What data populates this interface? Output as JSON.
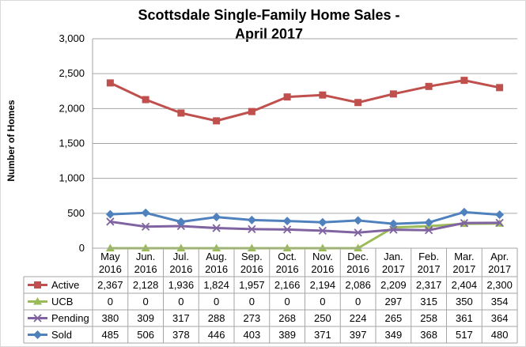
{
  "chart_data": {
    "type": "line",
    "title_lines": [
      "Scottsdale Single-Family Home Sales -",
      "April 2017"
    ],
    "ylabel": "Number of Homes",
    "ylim": [
      0,
      3000
    ],
    "yticks": [
      0,
      500,
      1000,
      1500,
      2000,
      2500,
      3000
    ],
    "ytick_labels": [
      "0",
      "500",
      "1,000",
      "1,500",
      "2,000",
      "2,500",
      "3,000"
    ],
    "grid": true,
    "legend_placement": "data-table",
    "categories": [
      [
        "May",
        "2016"
      ],
      [
        "Jun.",
        "2016"
      ],
      [
        "Jul.",
        "2016"
      ],
      [
        "Aug.",
        "2016"
      ],
      [
        "Sep.",
        "2016"
      ],
      [
        "Oct.",
        "2016"
      ],
      [
        "Nov.",
        "2016"
      ],
      [
        "Dec.",
        "2016"
      ],
      [
        "Jan.",
        "2017"
      ],
      [
        "Feb.",
        "2017"
      ],
      [
        "Mar.",
        "2017"
      ],
      [
        "Apr.",
        "2017"
      ]
    ],
    "series": [
      {
        "name": "Active",
        "color": "#c0504d",
        "marker": "square",
        "values": [
          2367,
          2128,
          1936,
          1824,
          1957,
          2166,
          2194,
          2086,
          2209,
          2317,
          2404,
          2300
        ],
        "labels": [
          "2,367",
          "2,128",
          "1,936",
          "1,824",
          "1,957",
          "2,166",
          "2,194",
          "2,086",
          "2,209",
          "2,317",
          "2,404",
          "2,300"
        ]
      },
      {
        "name": "UCB",
        "color": "#9bbb59",
        "marker": "triangle",
        "values": [
          0,
          0,
          0,
          0,
          0,
          0,
          0,
          0,
          297,
          315,
          350,
          354
        ],
        "labels": [
          "0",
          "0",
          "0",
          "0",
          "0",
          "0",
          "0",
          "0",
          "297",
          "315",
          "350",
          "354"
        ]
      },
      {
        "name": "Pending",
        "color": "#8064a2",
        "marker": "x",
        "values": [
          380,
          309,
          317,
          288,
          273,
          268,
          250,
          224,
          265,
          258,
          361,
          364
        ],
        "labels": [
          "380",
          "309",
          "317",
          "288",
          "273",
          "268",
          "250",
          "224",
          "265",
          "258",
          "361",
          "364"
        ]
      },
      {
        "name": "Sold",
        "color": "#4f81bd",
        "marker": "diamond",
        "values": [
          485,
          506,
          378,
          446,
          403,
          389,
          371,
          397,
          349,
          368,
          517,
          480
        ],
        "labels": [
          "485",
          "506",
          "378",
          "446",
          "403",
          "389",
          "371",
          "397",
          "349",
          "368",
          "517",
          "480"
        ]
      }
    ]
  }
}
